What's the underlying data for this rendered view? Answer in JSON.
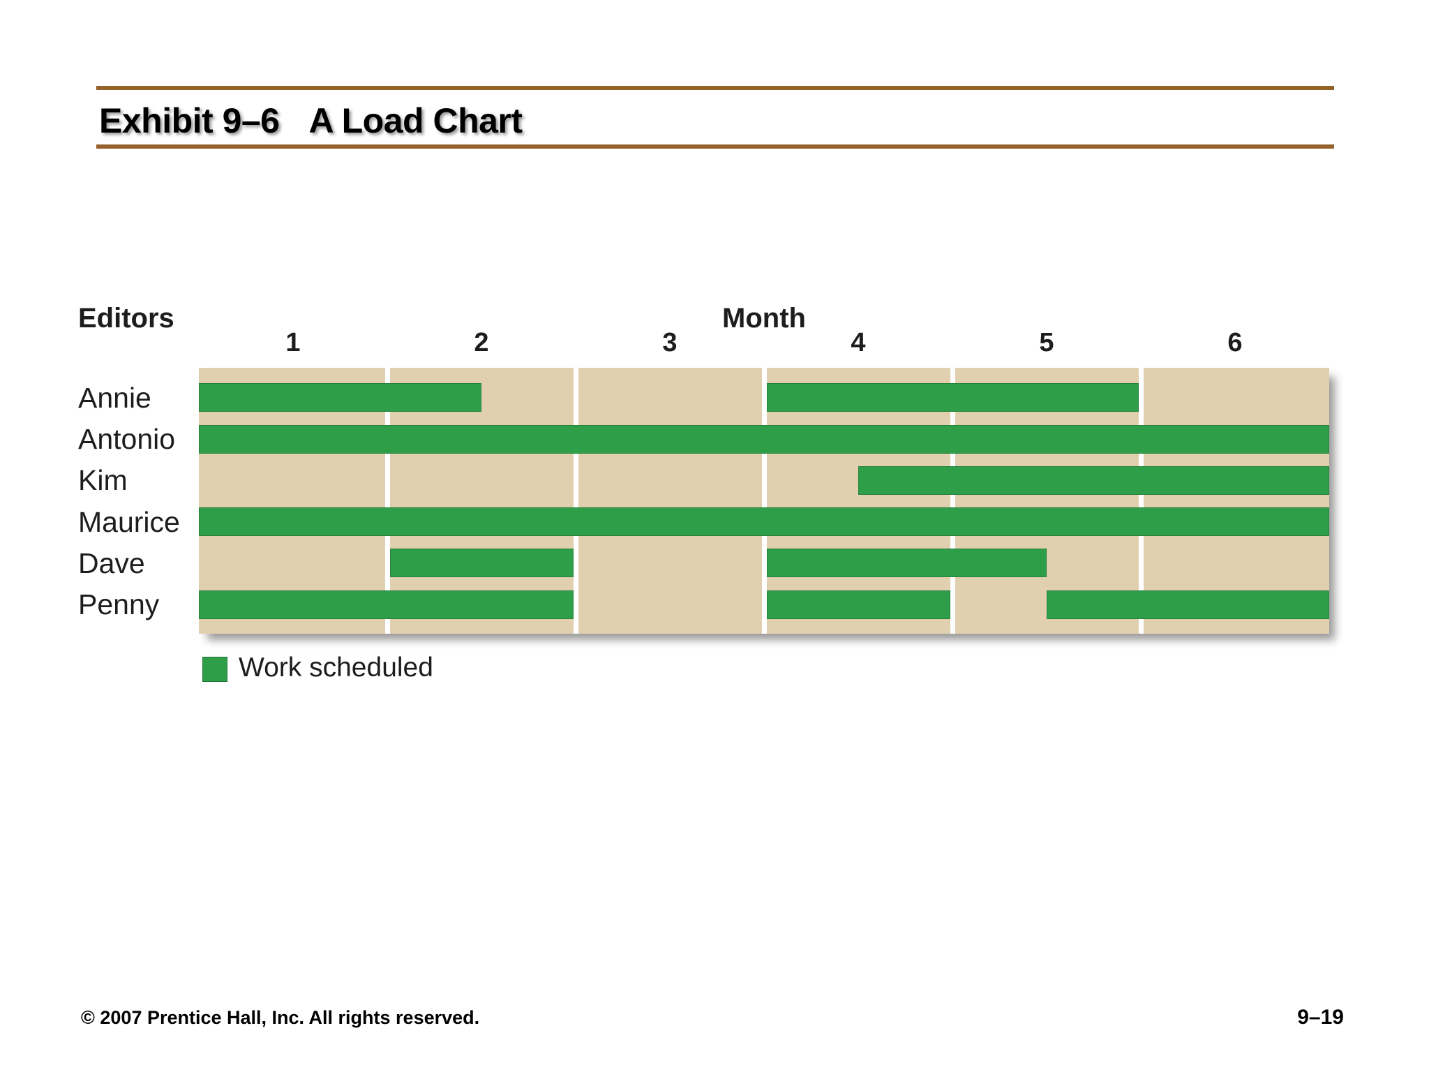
{
  "slide": {
    "exhibit_label": "Exhibit 9–6",
    "title": "A Load Chart",
    "footer_left": "© 2007 Prentice Hall, Inc. All rights reserved.",
    "footer_right": "9–19"
  },
  "chart_data": {
    "type": "bar",
    "subtype": "load-chart-gantt",
    "y_axis_label": "Editors",
    "x_axis_label": "Month",
    "x_ticks": [
      "1",
      "2",
      "3",
      "4",
      "5",
      "6"
    ],
    "x_range": [
      0,
      6
    ],
    "grid": "white column separators between months",
    "legend_position": "bottom-left",
    "legend": [
      {
        "label": "Work scheduled",
        "color": "#2F9E49"
      }
    ],
    "rows": [
      {
        "editor": "Annie",
        "scheduled_months": [
          [
            0,
            1.5
          ],
          [
            3,
            5
          ]
        ]
      },
      {
        "editor": "Antonio",
        "scheduled_months": [
          [
            0,
            6
          ]
        ]
      },
      {
        "editor": "Kim",
        "scheduled_months": [
          [
            3.5,
            6
          ]
        ]
      },
      {
        "editor": "Maurice",
        "scheduled_months": [
          [
            0,
            6
          ]
        ]
      },
      {
        "editor": "Dave",
        "scheduled_months": [
          [
            1,
            2
          ],
          [
            3,
            4.5
          ]
        ]
      },
      {
        "editor": "Penny",
        "scheduled_months": [
          [
            0,
            2
          ],
          [
            3,
            4
          ],
          [
            4.5,
            6
          ]
        ]
      }
    ],
    "colors": {
      "bar_green": "#2F9E49",
      "track_tan": "#E0D0AF",
      "rule_brown": "#95622B"
    }
  }
}
